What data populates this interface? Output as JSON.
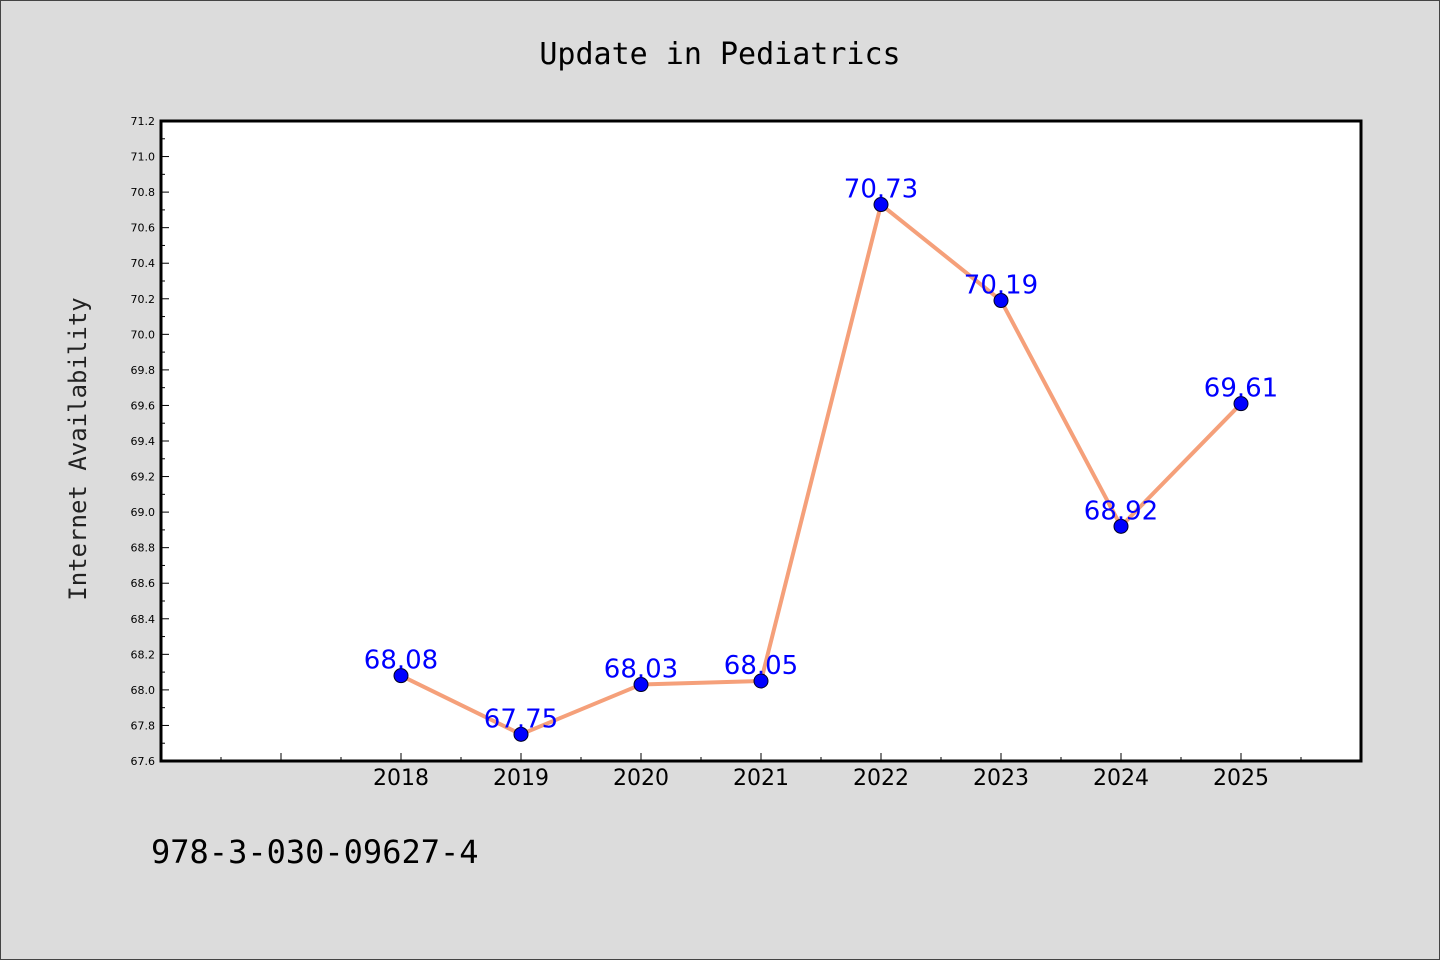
{
  "chart_data": {
    "type": "line",
    "title": "Update in Pediatrics",
    "xlabel": "",
    "ylabel": "Internet Availability",
    "x": [
      2018,
      2019,
      2020,
      2021,
      2022,
      2023,
      2024,
      2025
    ],
    "x_tick_labels": [
      "2018",
      "2019",
      "2020",
      "2021",
      "2022",
      "2023",
      "2024",
      "2025"
    ],
    "series": [
      {
        "values": [
          68.08,
          67.75,
          68.03,
          68.05,
          70.73,
          70.19,
          68.92,
          69.61
        ],
        "data_labels": [
          "68.08",
          "67.75",
          "68.03",
          "68.05",
          "70.73",
          "70.19",
          "68.92",
          "69.61"
        ],
        "line_color": "#f5a07a",
        "marker_color": "#0000ff"
      }
    ],
    "xlim": [
      2016,
      2026
    ],
    "ylim": [
      67.6,
      71.2
    ],
    "y_tick_labels": [
      "67.6",
      "67.8",
      "68.0",
      "68.2",
      "68.4",
      "68.6",
      "68.8",
      "69.0",
      "69.2",
      "69.4",
      "69.6",
      "69.8",
      "70.0",
      "70.2",
      "70.4",
      "70.6",
      "70.8",
      "71.0",
      "71.2"
    ],
    "grid": false,
    "legend": "none",
    "plot_background": "#ffffff",
    "page_background": "#dcdcdc"
  },
  "footer": {
    "isbn": "978-3-030-09627-4"
  }
}
